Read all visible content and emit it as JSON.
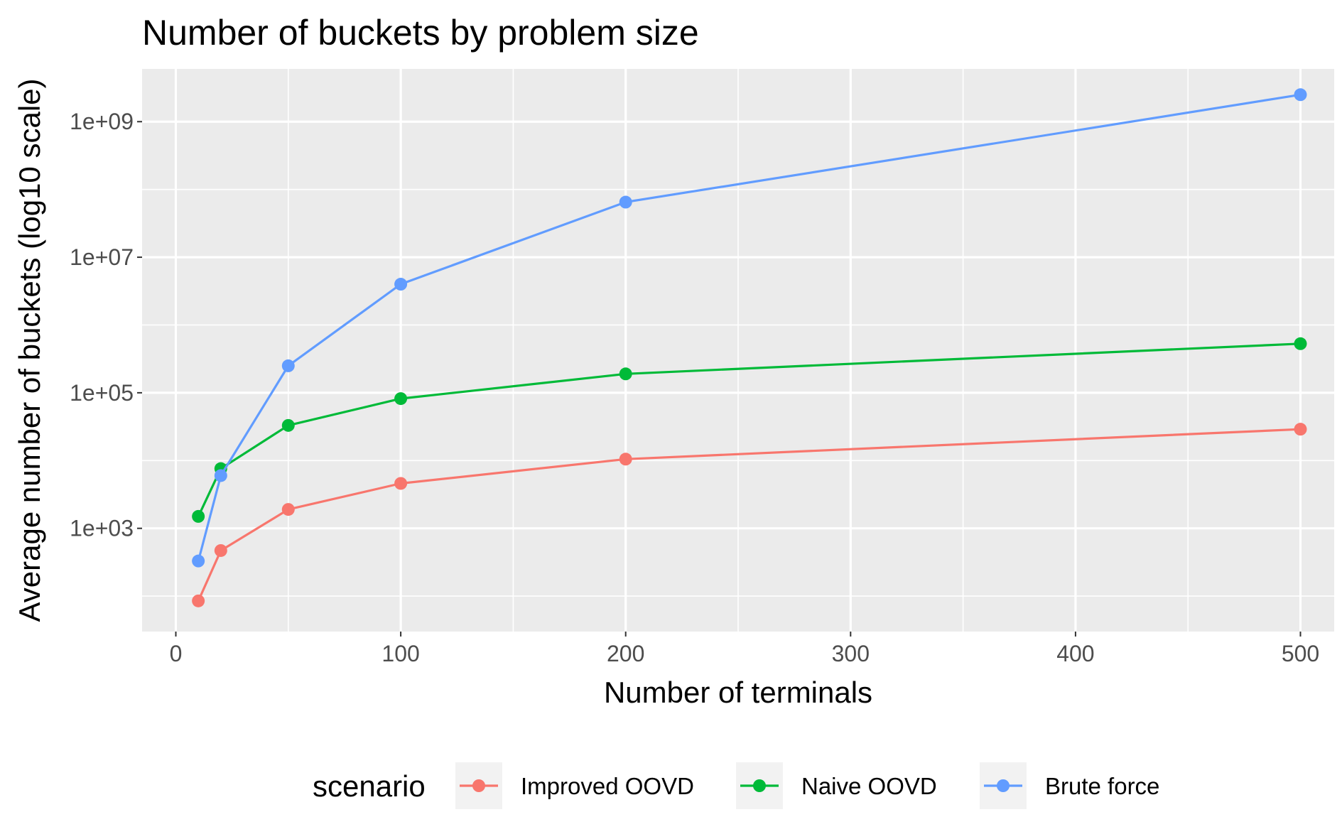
{
  "chart_data": {
    "type": "line",
    "title": "Number of buckets by problem size",
    "xlabel": "Number of terminals",
    "ylabel": "Average number of buckets (log10 scale)",
    "x_scale": "linear",
    "y_scale": "log10",
    "xlim": [
      -15,
      515
    ],
    "ylim": [
      30,
      6000000000
    ],
    "x_ticks": [
      0,
      100,
      200,
      300,
      400,
      500
    ],
    "x_tick_labels": [
      "0",
      "100",
      "200",
      "300",
      "400",
      "500"
    ],
    "y_ticks": [
      1000,
      100000,
      10000000,
      1000000000
    ],
    "y_tick_labels": [
      "1e+03",
      "1e+05",
      "1e+07",
      "1e+09"
    ],
    "grid": true,
    "legend_title": "scenario",
    "legend_position": "bottom",
    "x": [
      10,
      20,
      50,
      100,
      200,
      500
    ],
    "series": [
      {
        "name": "Improved OOVD",
        "color": "#F8766D",
        "values": [
          85,
          470,
          1900,
          4600,
          10500,
          29000
        ]
      },
      {
        "name": "Naive OOVD",
        "color": "#00BA38",
        "values": [
          1500,
          7600,
          33000,
          82000,
          190000,
          530000
        ]
      },
      {
        "name": "Brute force",
        "color": "#619CFF",
        "values": [
          330,
          6000,
          250000,
          4000000,
          65000000,
          2500000000
        ]
      }
    ]
  }
}
